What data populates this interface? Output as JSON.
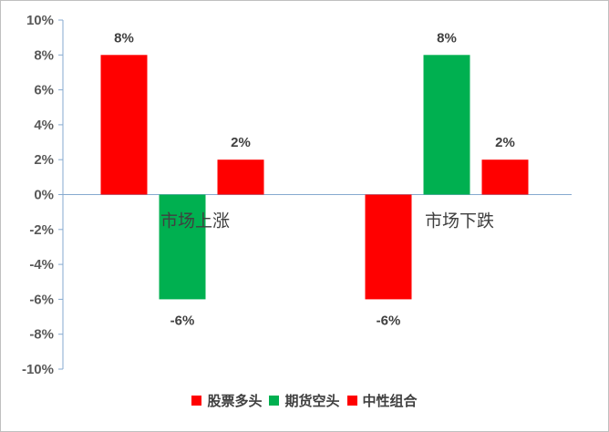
{
  "chart_data": {
    "type": "bar",
    "categories": [
      "市场上涨",
      "市场下跌"
    ],
    "series": [
      {
        "name": "股票多头",
        "values": [
          8,
          -6
        ],
        "color": "#ff0000"
      },
      {
        "name": "期货空头",
        "values": [
          -6,
          8
        ],
        "color": "#00b050"
      },
      {
        "name": "中性组合",
        "values": [
          2,
          2
        ],
        "color": "#ff0000"
      }
    ],
    "data_labels": [
      [
        "8%",
        "-6%",
        "2%"
      ],
      [
        "-6%",
        "8%",
        "2%"
      ]
    ],
    "y_ticks": [
      "10%",
      "8%",
      "6%",
      "4%",
      "2%",
      "0%",
      "-2%",
      "-4%",
      "-6%",
      "-8%",
      "-10%"
    ],
    "ylim": [
      -10,
      10
    ],
    "y_format": "percent",
    "grid": false,
    "legend_position": "bottom",
    "title": "",
    "xlabel": "",
    "ylabel": ""
  }
}
